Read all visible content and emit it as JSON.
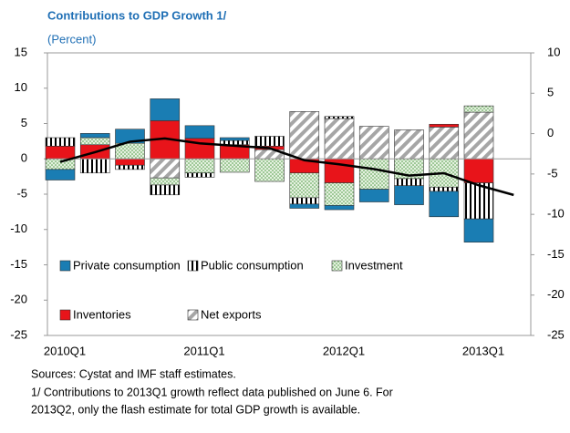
{
  "chart_data": {
    "type": "bar",
    "title": "Contributions to GDP Growth 1/",
    "subtitle": "(Percent)",
    "categories": [
      "2010Q1",
      null,
      null,
      null,
      "2011Q1",
      null,
      null,
      null,
      "2012Q1",
      null,
      null,
      null,
      "2013Q1",
      null
    ],
    "ylim": [
      -25,
      15
    ],
    "yticks": [
      15,
      10,
      5,
      0,
      -5,
      -10,
      -15,
      -20,
      -25
    ],
    "y2lim": [
      -25,
      10
    ],
    "y2ticks": [
      10,
      5,
      0,
      -5,
      -10,
      -15,
      -20,
      -25
    ],
    "stacked": true,
    "series": [
      {
        "name": "Private consumption",
        "color": "#1a7db3",
        "pattern": "solid",
        "values": [
          -1.5,
          0.6,
          2.0,
          3.1,
          1.8,
          0.4,
          0,
          -0.6,
          -0.6,
          -1.8,
          -2.7,
          -3.6,
          -3.3,
          null
        ]
      },
      {
        "name": "Public consumption",
        "color": "#000000",
        "pattern": "vertical",
        "values": [
          1.2,
          -2.0,
          -0.6,
          -1.4,
          -0.6,
          0.6,
          1.4,
          -0.9,
          0.3,
          0,
          -1.0,
          -0.6,
          -5.1,
          null
        ]
      },
      {
        "name": "Investment",
        "color": "#8cc084",
        "pattern": "dots",
        "values": [
          -1.5,
          1.0,
          2.2,
          -1.0,
          -2.0,
          -1.9,
          -3.2,
          -3.5,
          -3.2,
          -4.3,
          -2.8,
          -4.0,
          0.9,
          null
        ]
      },
      {
        "name": "Inventories",
        "color": "#e8141a",
        "pattern": "solid",
        "values": [
          1.8,
          2.0,
          -0.9,
          5.4,
          2.9,
          2.0,
          0.5,
          -2.0,
          -3.4,
          0,
          0,
          0.4,
          -3.4,
          null
        ]
      },
      {
        "name": "Net exports",
        "color": "#a6a6a6",
        "pattern": "diagonal",
        "values": [
          0,
          0,
          0,
          -2.7,
          0,
          0,
          1.3,
          6.7,
          5.7,
          4.6,
          4.1,
          4.5,
          6.6,
          null
        ]
      },
      {
        "type": "line",
        "axis": "y2",
        "color": "#000000",
        "values": [
          -3.5,
          -2.3,
          -1.0,
          -0.6,
          -1.2,
          -1.5,
          -1.8,
          -3.3,
          -3.8,
          -4.4,
          -5.2,
          -4.9,
          -6.4,
          -7.6
        ]
      }
    ],
    "notes": [
      "Sources: Cystat and IMF staff estimates.",
      "1/ Contributions to 2013Q1 growth reflect data published on June 6. For",
      "2013Q2, only the flash estimate for  total GDP growth is available."
    ]
  }
}
